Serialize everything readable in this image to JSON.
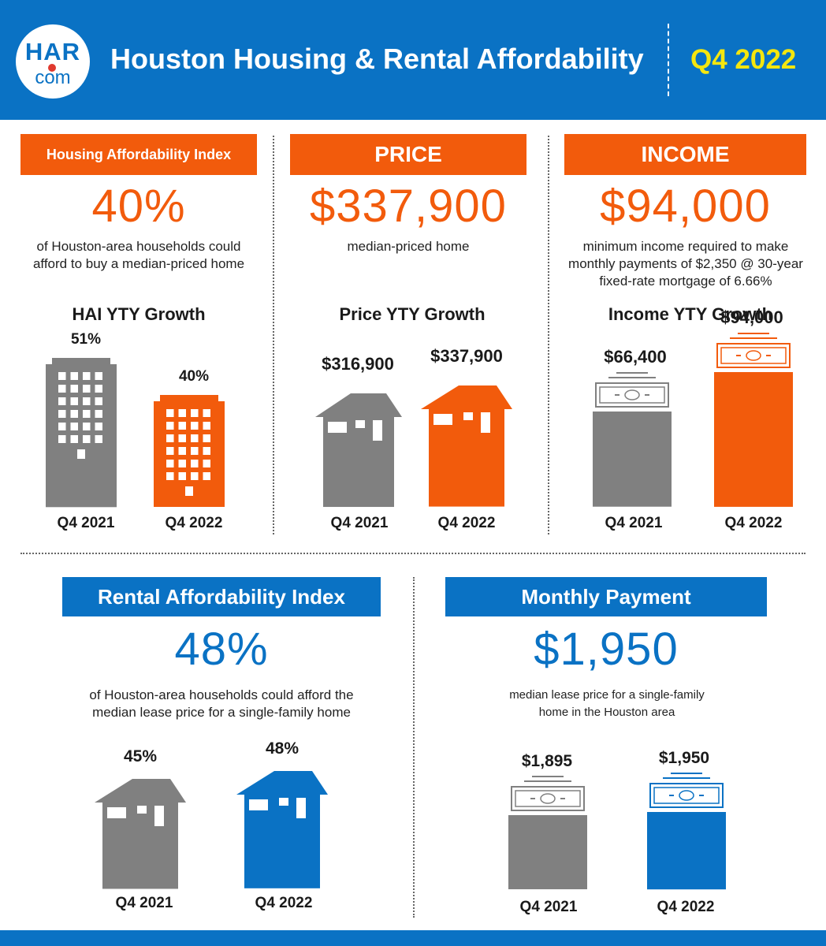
{
  "header": {
    "logo_top": "HAR",
    "logo_bottom": "com",
    "title": "Houston Housing & Rental Affordability",
    "period": "Q4 2022"
  },
  "colors": {
    "brand_blue": "#0a72c4",
    "accent_orange": "#f25b0c",
    "gray": "#808080",
    "period_yellow": "#f5e60e"
  },
  "icons": {
    "building": "building-icon",
    "house": "house-icon",
    "money": "money-bill-icon"
  },
  "sections": {
    "hai": {
      "label": "Housing Affordability Index",
      "value": "40%",
      "description_line1": "of Houston-area households could",
      "description_line2": "afford to buy a median-priced home",
      "chart_title": "HAI YTY Growth"
    },
    "price": {
      "label": "PRICE",
      "value": "$337,900",
      "description_line1": "median-priced home",
      "chart_title": "Price YTY Growth"
    },
    "income": {
      "label": "INCOME",
      "value": "$94,000",
      "description_line1": "minimum income required to make",
      "description_line2": "monthly payments of $2,350 @ 30-year",
      "description_line3": "fixed-rate mortgage of 6.66%",
      "chart_title": "Income YTY Growth"
    },
    "rai": {
      "label": "Rental Affordability Index",
      "value": "48%",
      "description_line1": "of Houston-area households could afford the",
      "description_line2": "median lease price for a single-family home"
    },
    "payment": {
      "label": "Monthly Payment",
      "value": "$1,950",
      "description_line1": "median lease price for a single-family",
      "description_line2": "home in the Houston area"
    }
  },
  "chart_data": [
    {
      "type": "bar",
      "title": "HAI YTY Growth",
      "categories": [
        "Q4 2021",
        "Q4 2022"
      ],
      "values": [
        51,
        40
      ],
      "value_labels": [
        "51%",
        "40%"
      ],
      "unit": "%"
    },
    {
      "type": "bar",
      "title": "Price YTY Growth",
      "categories": [
        "Q4 2021",
        "Q4 2022"
      ],
      "values": [
        316900,
        337900
      ],
      "value_labels": [
        "$316,900",
        "$337,900"
      ],
      "unit": "$"
    },
    {
      "type": "bar",
      "title": "Income YTY Growth",
      "categories": [
        "Q4 2021",
        "Q4 2022"
      ],
      "values": [
        66400,
        94000
      ],
      "value_labels": [
        "$66,400",
        "$94,000"
      ],
      "unit": "$"
    },
    {
      "type": "bar",
      "title": "",
      "categories": [
        "Q4 2021",
        "Q4 2022"
      ],
      "values": [
        45,
        48
      ],
      "value_labels": [
        "45%",
        "48%"
      ],
      "unit": "%"
    },
    {
      "type": "bar",
      "title": "",
      "categories": [
        "Q4 2021",
        "Q4 2022"
      ],
      "values": [
        1895,
        1950
      ],
      "value_labels": [
        "$1,895",
        "$1,950"
      ],
      "unit": "$"
    }
  ]
}
